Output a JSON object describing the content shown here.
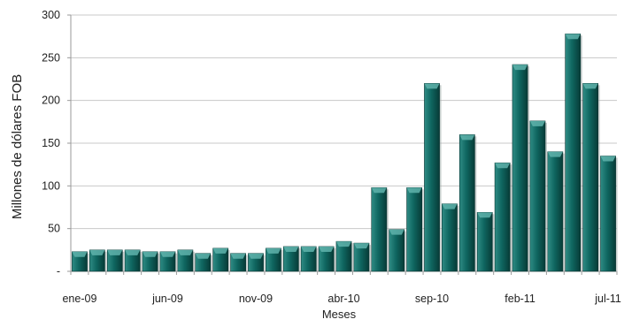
{
  "chart_data": {
    "type": "bar",
    "title": "",
    "xlabel": "Meses",
    "ylabel": "Millones de dólares FOB",
    "ylim": [
      0,
      300
    ],
    "yticks": [
      0,
      50,
      100,
      150,
      200,
      250,
      300
    ],
    "ytick_labels": [
      "-",
      "50",
      "100",
      "150",
      "200",
      "250",
      "300"
    ],
    "grid": true,
    "categories": [
      "ene-09",
      "feb-09",
      "mar-09",
      "abr-09",
      "may-09",
      "jun-09",
      "jul-09",
      "ago-09",
      "sep-09",
      "oct-09",
      "nov-09",
      "dic-09",
      "ene-10",
      "feb-10",
      "mar-10",
      "abr-10",
      "may-10",
      "jun-10",
      "jul-10",
      "ago-10",
      "sep-10",
      "oct-10",
      "nov-10",
      "dic-10",
      "ene-11",
      "feb-11",
      "mar-11",
      "abr-11",
      "may-11",
      "jun-11",
      "jul-11"
    ],
    "xtick_labels": [
      {
        "index": 0,
        "label": "ene-09"
      },
      {
        "index": 5,
        "label": "jun-09"
      },
      {
        "index": 10,
        "label": "nov-09"
      },
      {
        "index": 15,
        "label": "abr-10"
      },
      {
        "index": 20,
        "label": "sep-10"
      },
      {
        "index": 25,
        "label": "feb-11"
      },
      {
        "index": 30,
        "label": "jul-11"
      }
    ],
    "values": [
      23,
      25,
      25,
      25,
      23,
      23,
      25,
      21,
      27,
      21,
      21,
      27,
      29,
      29,
      29,
      35,
      33,
      98,
      49,
      98,
      220,
      79,
      160,
      69,
      127,
      242,
      176,
      140,
      278,
      220,
      135
    ],
    "bar_color": "#0e5f5a"
  }
}
